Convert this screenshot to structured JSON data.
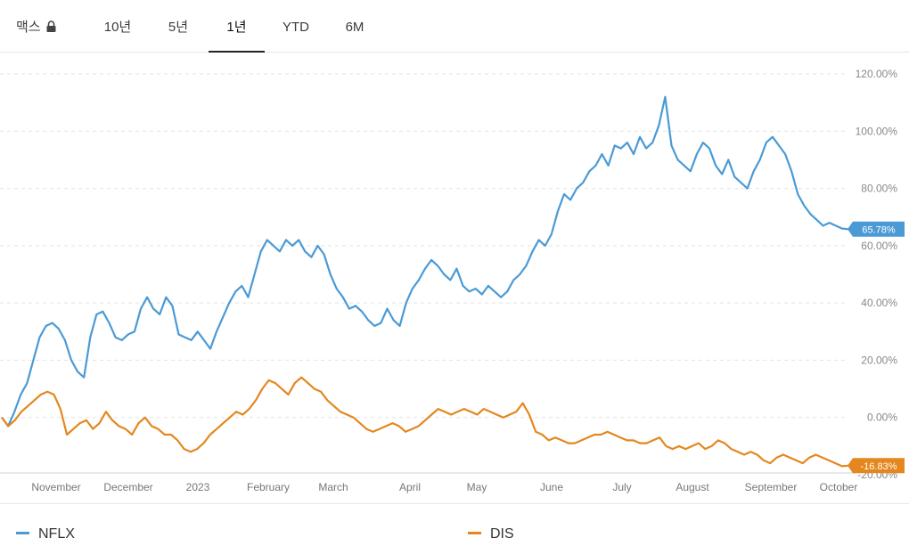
{
  "tabs": [
    {
      "label": "맥스",
      "locked": true,
      "active": false
    },
    {
      "label": "10년",
      "active": false
    },
    {
      "label": "5년",
      "active": false
    },
    {
      "label": "1년",
      "active": true
    },
    {
      "label": "YTD",
      "active": false
    },
    {
      "label": "6M",
      "active": false
    }
  ],
  "colors": {
    "nflx": "#4a9ad6",
    "dis": "#e4871e"
  },
  "chart_data": {
    "type": "line",
    "y_unit": "%",
    "ylim": [
      -20,
      120
    ],
    "yticks": [
      "120.00%",
      "100.00%",
      "80.00%",
      "60.00%",
      "40.00%",
      "20.00%",
      "0.00%",
      "-20.00%"
    ],
    "x_ticks": [
      "November",
      "December",
      "2023",
      "February",
      "March",
      "April",
      "May",
      "June",
      "July",
      "August",
      "September",
      "October"
    ],
    "grid": true,
    "series": [
      {
        "name": "NFLX",
        "last_label": "65.78%",
        "values": [
          0,
          -3,
          2,
          8,
          12,
          20,
          28,
          32,
          33,
          31,
          27,
          20,
          16,
          14,
          28,
          36,
          37,
          33,
          28,
          27,
          29,
          30,
          38,
          42,
          38,
          36,
          42,
          39,
          29,
          28,
          27,
          30,
          27,
          24,
          30,
          35,
          40,
          44,
          46,
          42,
          50,
          58,
          62,
          60,
          58,
          62,
          60,
          62,
          58,
          56,
          60,
          57,
          50,
          45,
          42,
          38,
          39,
          37,
          34,
          32,
          33,
          38,
          34,
          32,
          40,
          45,
          48,
          52,
          55,
          53,
          50,
          48,
          52,
          46,
          44,
          45,
          43,
          46,
          44,
          42,
          44,
          48,
          50,
          53,
          58,
          62,
          60,
          64,
          72,
          78,
          76,
          80,
          82,
          86,
          88,
          92,
          88,
          95,
          94,
          96,
          92,
          98,
          94,
          96,
          102,
          112,
          95,
          90,
          88,
          86,
          92,
          96,
          94,
          88,
          85,
          90,
          84,
          82,
          80,
          86,
          90,
          96,
          98,
          95,
          92,
          86,
          78,
          74,
          71,
          69,
          67,
          68,
          67,
          66,
          65.78
        ]
      },
      {
        "name": "DIS",
        "last_label": "-16.83%",
        "values": [
          0,
          -3,
          -1,
          2,
          4,
          6,
          8,
          9,
          8,
          3,
          -6,
          -4,
          -2,
          -1,
          -4,
          -2,
          2,
          -1,
          -3,
          -4,
          -6,
          -2,
          0,
          -3,
          -4,
          -6,
          -6,
          -8,
          -11,
          -12,
          -11,
          -9,
          -6,
          -4,
          -2,
          0,
          2,
          1,
          3,
          6,
          10,
          13,
          12,
          10,
          8,
          12,
          14,
          12,
          10,
          9,
          6,
          4,
          2,
          1,
          0,
          -2,
          -4,
          -5,
          -4,
          -3,
          -2,
          -3,
          -5,
          -4,
          -3,
          -1,
          1,
          3,
          2,
          1,
          2,
          3,
          2,
          1,
          3,
          2,
          1,
          0,
          1,
          2,
          5,
          1,
          -5,
          -6,
          -8,
          -7,
          -8,
          -9,
          -9,
          -8,
          -7,
          -6,
          -6,
          -5,
          -6,
          -7,
          -8,
          -8,
          -9,
          -9,
          -8,
          -7,
          -10,
          -11,
          -10,
          -11,
          -10,
          -9,
          -11,
          -10,
          -8,
          -9,
          -11,
          -12,
          -13,
          -12,
          -13,
          -15,
          -16,
          -14,
          -13,
          -14,
          -15,
          -16,
          -14,
          -13,
          -14,
          -15,
          -16,
          -17,
          -16.83
        ]
      }
    ]
  }
}
